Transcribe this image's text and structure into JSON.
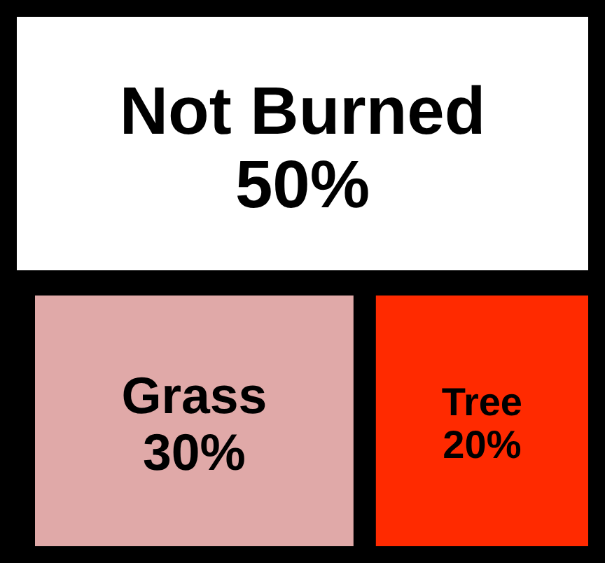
{
  "chart_data": {
    "type": "other",
    "categories": [
      "Not Burned",
      "Grass",
      "Tree"
    ],
    "values": [
      50,
      30,
      20
    ],
    "value_labels": [
      "50%",
      "30%",
      "20%"
    ],
    "colors": [
      "#ffffff",
      "#e0a9a8",
      "#ff2a00"
    ]
  }
}
